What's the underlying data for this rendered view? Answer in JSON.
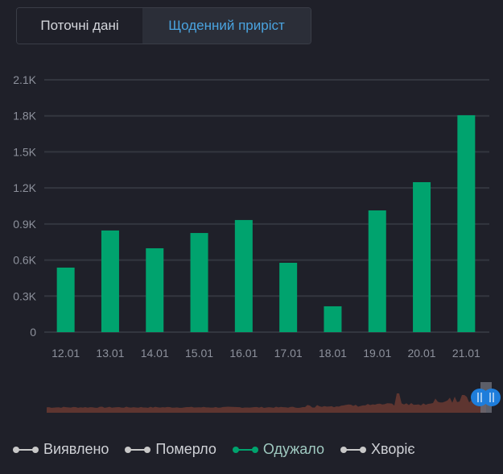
{
  "tabs": [
    {
      "label": "Поточні дані",
      "active": false
    },
    {
      "label": "Щоденний приріст",
      "active": true
    }
  ],
  "colors": {
    "background": "#1f2029",
    "bar": "#00a36e",
    "grid": "#33363f",
    "axis_text": "#8d919c",
    "minimap_area": "#5e3530",
    "slider_handle": "#1e7ddb",
    "slider_window": "#6b6e78",
    "legend_inactive": "#c8c8c8",
    "legend_active": "#00a36e"
  },
  "chart_data": {
    "type": "bar",
    "title": "",
    "xlabel": "",
    "ylabel": "",
    "categories": [
      "12.01",
      "13.01",
      "14.01",
      "15.01",
      "16.01",
      "17.01",
      "18.01",
      "19.01",
      "20.01",
      "21.01"
    ],
    "series": [
      {
        "name": "Одужало",
        "values": [
          537,
          846,
          698,
          825,
          933,
          577,
          215,
          1013,
          1248,
          1805
        ]
      }
    ],
    "yticks": [
      0,
      300,
      600,
      900,
      1200,
      1500,
      1800,
      2100
    ],
    "ytick_labels": [
      "0",
      "0.3K",
      "0.6K",
      "0.9K",
      "1.2K",
      "1.5K",
      "1.8K",
      "2.1K"
    ],
    "ylim": [
      0,
      2100
    ],
    "grid": true,
    "legend_position": "bottom",
    "minimap": {
      "type": "area",
      "selection_range_pct": [
        96.5,
        99.3
      ]
    }
  },
  "legend": [
    {
      "label": "Виявлено",
      "active": false
    },
    {
      "label": "Померло",
      "active": false
    },
    {
      "label": "Одужало",
      "active": true
    },
    {
      "label": "Хворіє",
      "active": false
    }
  ]
}
